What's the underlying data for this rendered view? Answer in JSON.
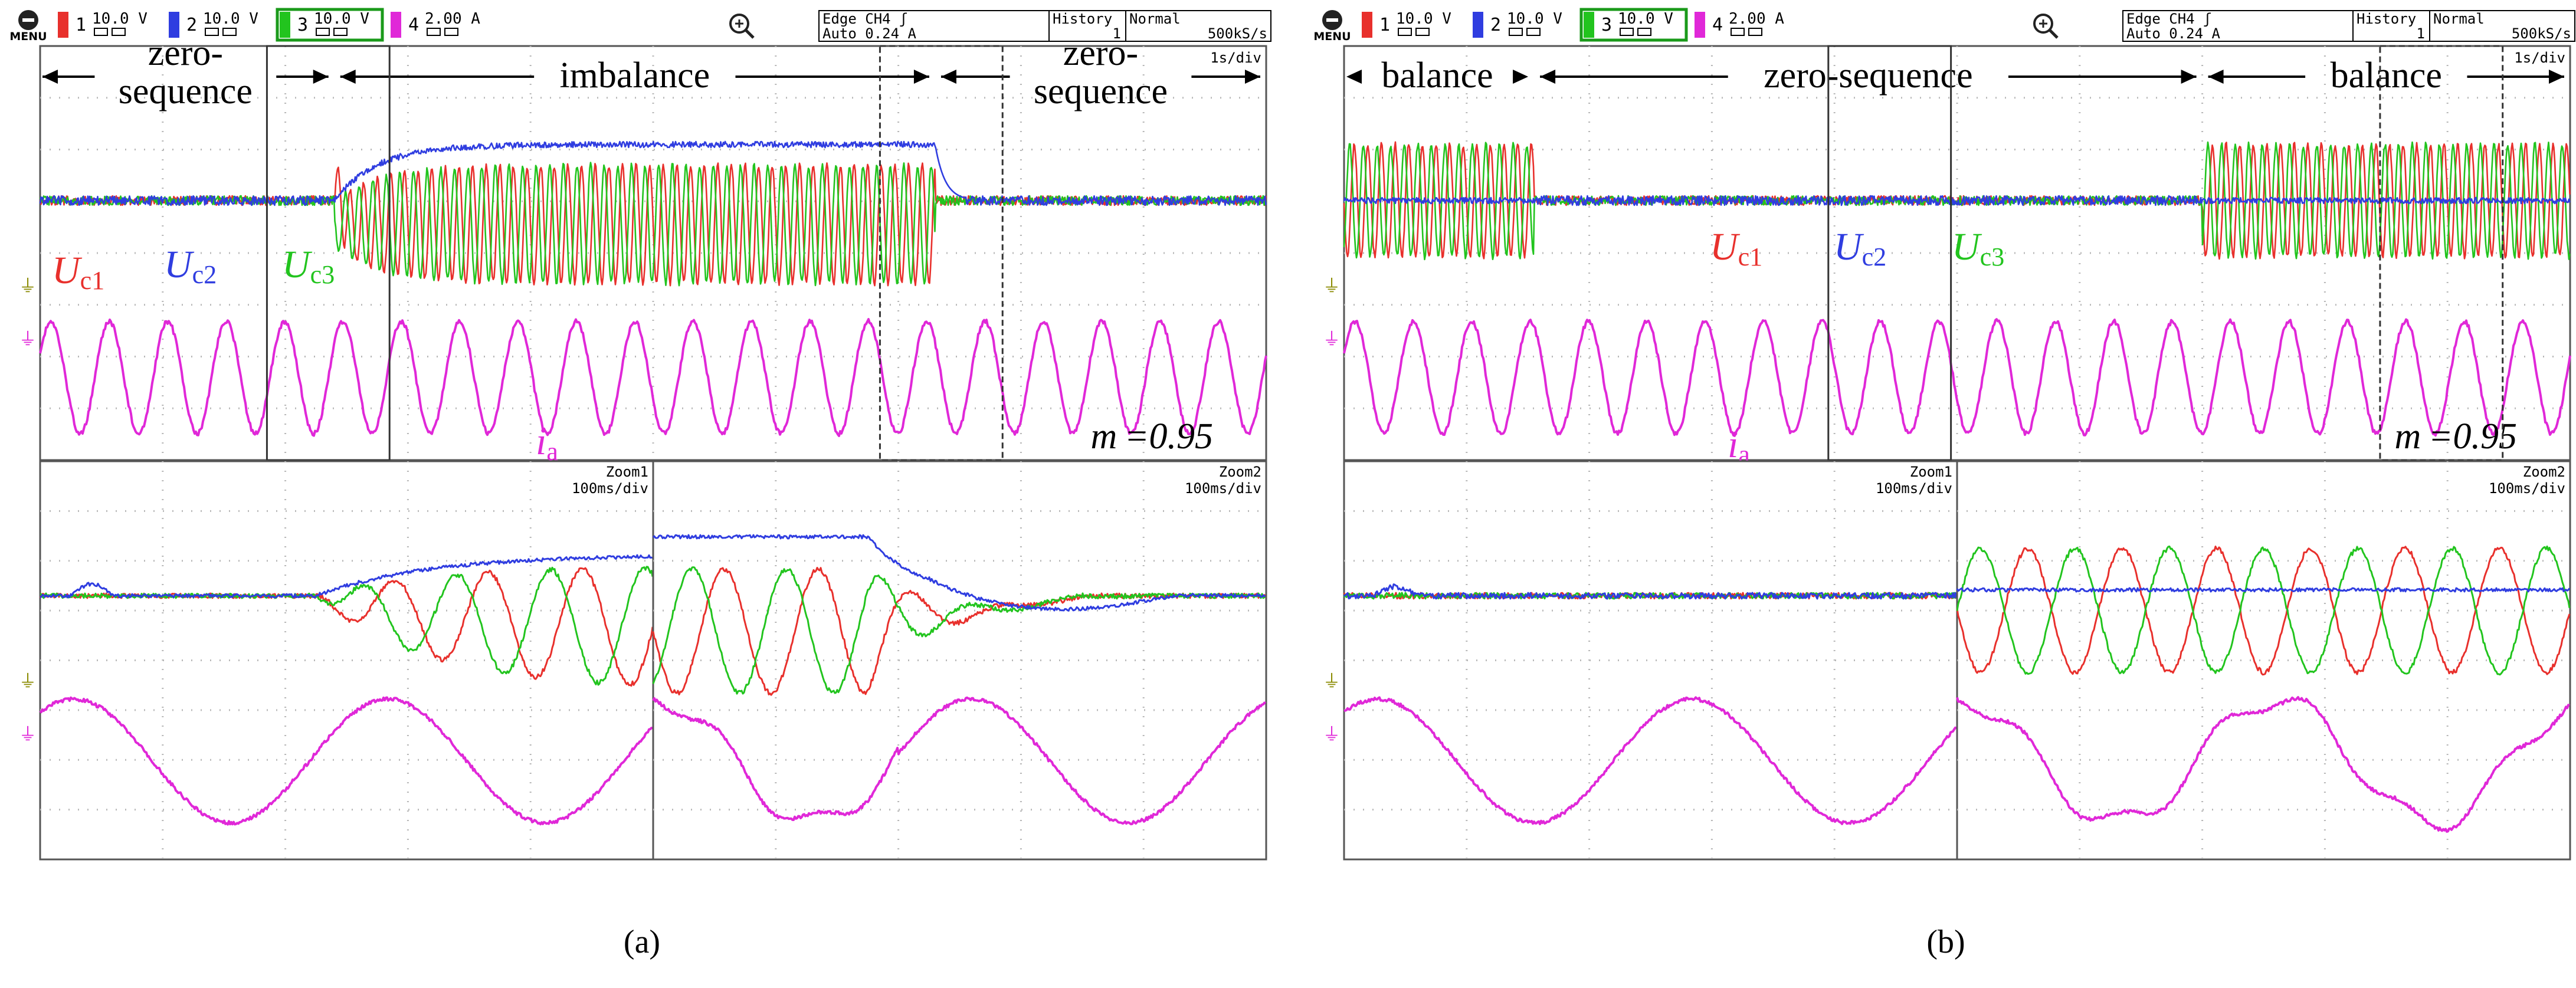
{
  "colors": {
    "ch1": "#e8302c",
    "ch2": "#2f3de0",
    "ch3": "#22c41e",
    "ch4": "#e028d8",
    "grid": "#b8b8b8",
    "frame": "#555555",
    "text": "#000000"
  },
  "chart_data": [
    {
      "type": "line",
      "panel_label": "(a)",
      "header": {
        "menu": "MENU",
        "channels": [
          {
            "num": "1",
            "scale": "10.0 V"
          },
          {
            "num": "2",
            "scale": "10.0 V"
          },
          {
            "num": "3",
            "scale": "10.0 V"
          },
          {
            "num": "4",
            "scale": "2.00 A"
          }
        ],
        "trigger_line1": "Edge CH4 ʃ",
        "trigger_line2": "Auto 0.24 A",
        "history_label": "History",
        "history_value": "1",
        "mode": "Normal",
        "sample_rate": "500kS/s"
      },
      "main": {
        "timebase": "1s/div",
        "time_range_s": [
          0,
          10
        ],
        "segments": [
          {
            "label": "zero-\nsequence",
            "t_start": 0.0,
            "t_end": 2.4
          },
          {
            "label": "imbalance",
            "t_start": 2.4,
            "t_end": 7.3
          },
          {
            "label": "zero-\nsequence",
            "t_start": 7.3,
            "t_end": 10.0
          }
        ],
        "series_labels": [
          {
            "base": "U",
            "sub": "c1",
            "color_key": "ch1"
          },
          {
            "base": "U",
            "sub": "c2",
            "color_key": "ch2"
          },
          {
            "base": "U",
            "sub": "c3",
            "color_key": "ch3"
          },
          {
            "base": "i",
            "sub": "a",
            "color_key": "ch4"
          }
        ],
        "annotation": "m =0.95",
        "current_frequency_hz": 2.1,
        "zoom_windows": [
          {
            "name": "Zoom1",
            "t_start": 1.85,
            "t_end": 2.85,
            "style": "solid"
          },
          {
            "name": "Zoom2",
            "t_start": 6.85,
            "t_end": 7.85,
            "style": "dashed"
          }
        ]
      },
      "zooms": [
        {
          "name": "Zoom1",
          "timebase": "100ms/div"
        },
        {
          "name": "Zoom2",
          "timebase": "100ms/div"
        }
      ]
    },
    {
      "type": "line",
      "panel_label": "(b)",
      "header": {
        "menu": "MENU",
        "channels": [
          {
            "num": "1",
            "scale": "10.0 V"
          },
          {
            "num": "2",
            "scale": "10.0 V"
          },
          {
            "num": "3",
            "scale": "10.0 V"
          },
          {
            "num": "4",
            "scale": "2.00 A"
          }
        ],
        "trigger_line1": "Edge CH4 ʃ",
        "trigger_line2": "Auto 0.24 A",
        "history_label": "History",
        "history_value": "1",
        "mode": "Normal",
        "sample_rate": "500kS/s"
      },
      "main": {
        "timebase": "1s/div",
        "time_range_s": [
          0,
          10
        ],
        "segments": [
          {
            "label": "balance",
            "t_start": 0.0,
            "t_end": 1.55
          },
          {
            "label": "zero-sequence",
            "t_start": 1.55,
            "t_end": 7.0
          },
          {
            "label": "balance",
            "t_start": 7.0,
            "t_end": 10.0
          }
        ],
        "series_labels": [
          {
            "base": "U",
            "sub": "c1",
            "color_key": "ch1"
          },
          {
            "base": "U",
            "sub": "c2",
            "color_key": "ch2"
          },
          {
            "base": "U",
            "sub": "c3",
            "color_key": "ch3"
          },
          {
            "base": "i",
            "sub": "a",
            "color_key": "ch4"
          }
        ],
        "annotation": "m =0.95",
        "current_frequency_hz": 2.1,
        "zoom_windows": [
          {
            "name": "Zoom1",
            "t_start": 3.95,
            "t_end": 4.95,
            "style": "solid"
          },
          {
            "name": "Zoom2",
            "t_start": 8.45,
            "t_end": 9.45,
            "style": "dashed"
          }
        ]
      },
      "zooms": [
        {
          "name": "Zoom1",
          "timebase": "100ms/div"
        },
        {
          "name": "Zoom2",
          "timebase": "100ms/div"
        }
      ]
    }
  ]
}
